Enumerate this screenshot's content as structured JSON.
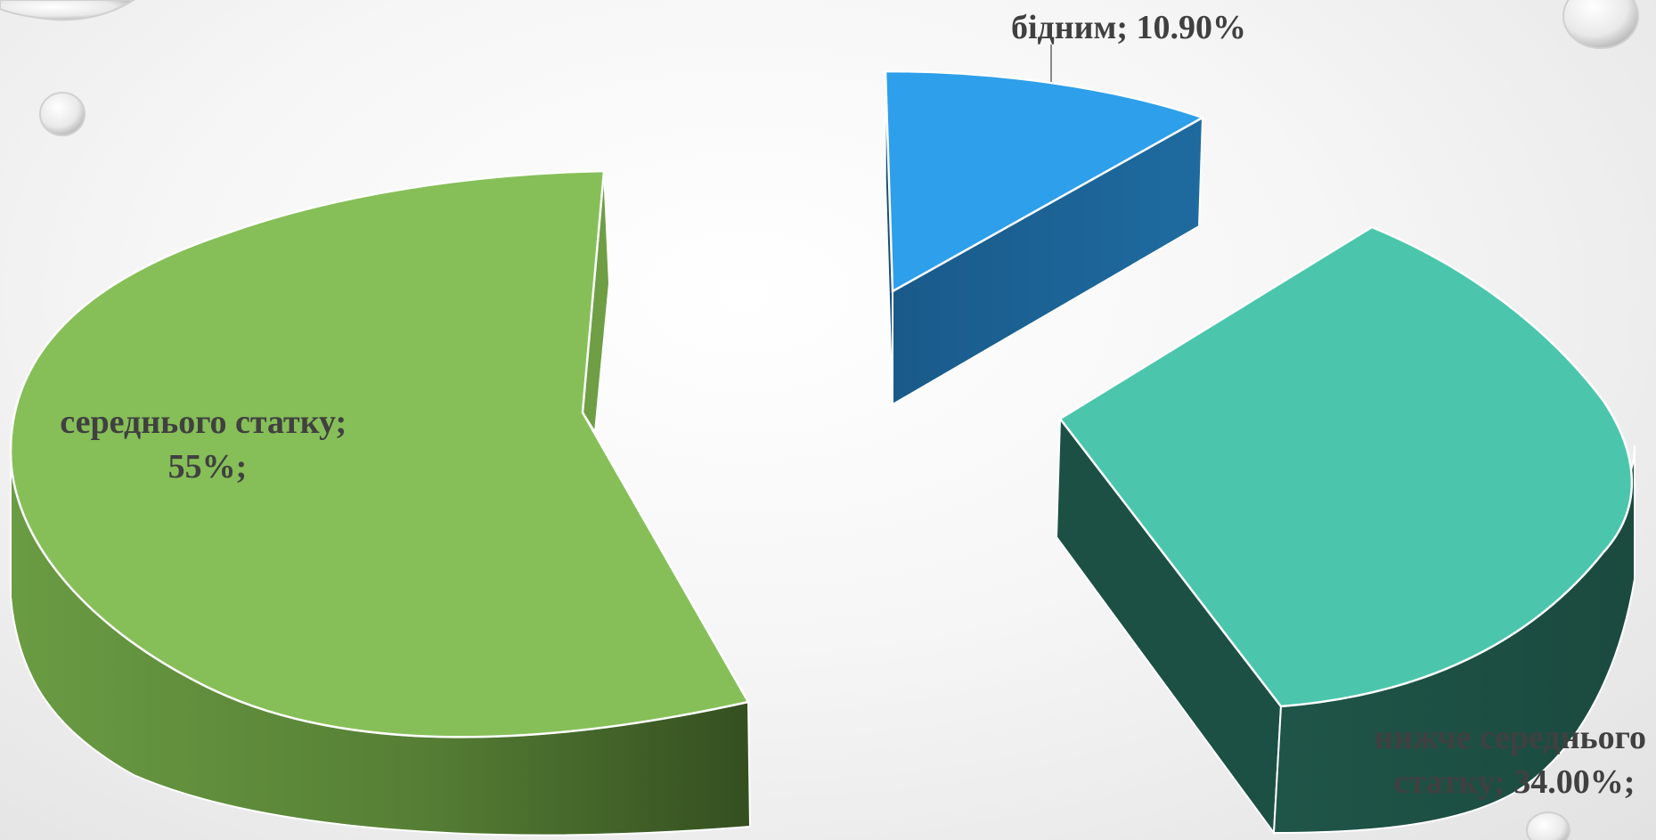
{
  "chart_data": {
    "type": "pie",
    "variant": "3d-exploded",
    "title": "",
    "slices": [
      {
        "label": "бідним; 10.90%",
        "label_lines": [
          "бідним; 10.90%"
        ],
        "category": "бідним",
        "value": 10.9,
        "color": "#2E9FEA"
      },
      {
        "label": "нижче середнього статку; 34.00%;",
        "label_lines": [
          "нижче середнього",
          "статку; 34.00%;"
        ],
        "category": "нижче середнього статку",
        "value": 34.0,
        "color": "#4BC6AD"
      },
      {
        "label": "середнього статку; 55%;",
        "label_lines": [
          "середнього статку;",
          "55%;"
        ],
        "category": "середнього статку",
        "value": 55,
        "color": "#86BF58"
      }
    ],
    "legend": "none"
  }
}
